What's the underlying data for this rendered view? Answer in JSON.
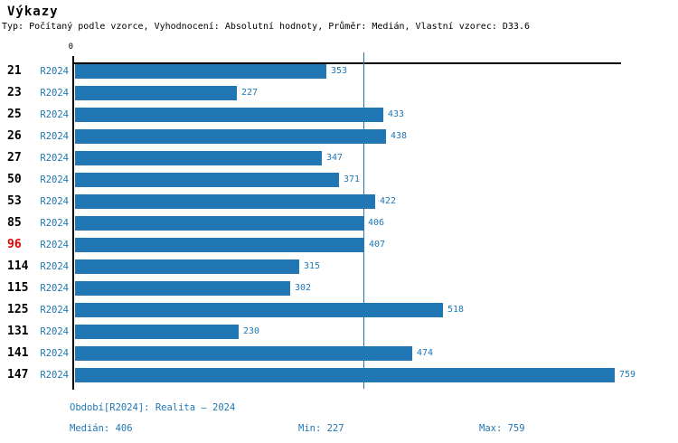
{
  "title": "Výkazy",
  "subtitle": "Typ: Počítaný podle vzorce, Vyhodnocení: Absolutní hodnoty, Průměr: Medián, Vlastní vzorec: D33.6",
  "colors": {
    "bar": "#2177b4",
    "text_blue": "#1f77b4",
    "highlight_red": "#e60000",
    "axis_black": "#000000",
    "median_line": "#1f77b4"
  },
  "chart_data": {
    "type": "bar",
    "orientation": "horizontal",
    "title": "Výkazy",
    "series_label": "R2024",
    "categories": [
      "21",
      "23",
      "25",
      "26",
      "27",
      "50",
      "53",
      "85",
      "96",
      "114",
      "115",
      "125",
      "131",
      "141",
      "147"
    ],
    "values": [
      353,
      227,
      433,
      438,
      347,
      371,
      422,
      406,
      407,
      315,
      302,
      518,
      230,
      474,
      759
    ],
    "highlighted_category": "96",
    "axis_origin_label": "0",
    "axis_range": [
      0,
      768
    ],
    "median_line_value": 406,
    "grid": false,
    "legend": false
  },
  "footer": {
    "period": "Období[R2024]: Realita – 2024",
    "median": "Medián: 406",
    "min": "Min: 227",
    "max": "Max: 759"
  }
}
